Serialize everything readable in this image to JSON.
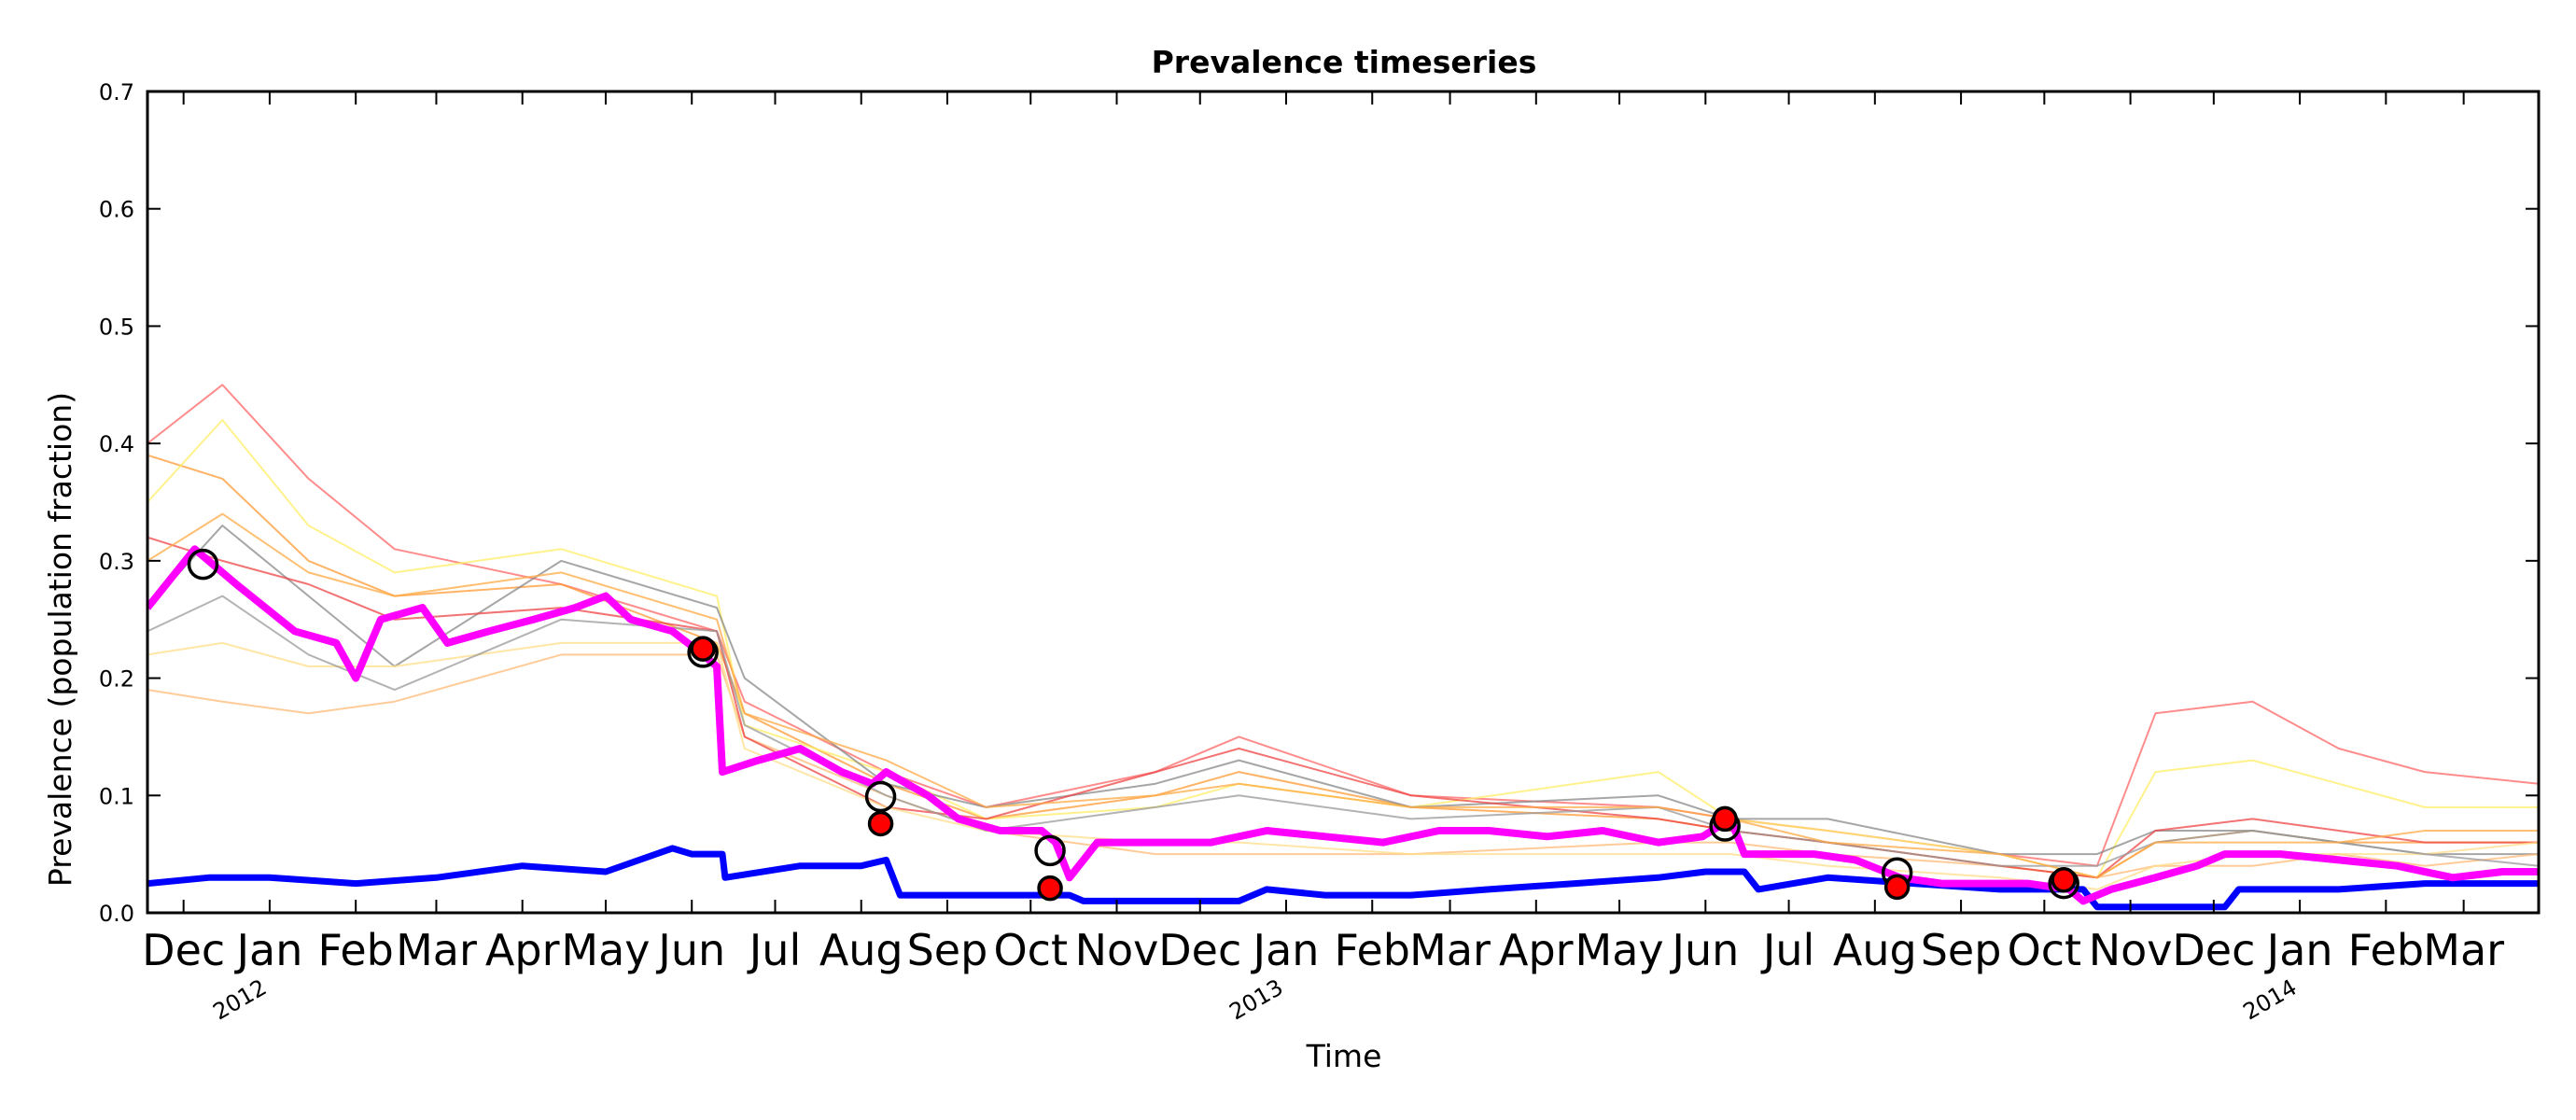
{
  "chart_data": {
    "type": "line",
    "title": "Prevalence timeseries",
    "xlabel": "Time",
    "ylabel": "Prevalence (population fraction)",
    "xlim": [
      "2011-11-18",
      "2014-03-28"
    ],
    "ylim": [
      0.0,
      0.7
    ],
    "yticks": [
      0.0,
      0.1,
      0.2,
      0.3,
      0.4,
      0.5,
      0.6,
      0.7
    ],
    "ytick_labels": [
      "0.0",
      "0.1",
      "0.2",
      "0.3",
      "0.4",
      "0.5",
      "0.6",
      "0.7"
    ],
    "month_ticks": [
      {
        "date": "2011-12-01",
        "label": "Dec"
      },
      {
        "date": "2012-01-01",
        "label": "Jan"
      },
      {
        "date": "2012-02-01",
        "label": "Feb"
      },
      {
        "date": "2012-03-01",
        "label": "Mar"
      },
      {
        "date": "2012-04-01",
        "label": "Apr"
      },
      {
        "date": "2012-05-01",
        "label": "May"
      },
      {
        "date": "2012-06-01",
        "label": "Jun"
      },
      {
        "date": "2012-07-01",
        "label": "Jul"
      },
      {
        "date": "2012-08-01",
        "label": "Aug"
      },
      {
        "date": "2012-09-01",
        "label": "Sep"
      },
      {
        "date": "2012-10-01",
        "label": "Oct"
      },
      {
        "date": "2012-11-01",
        "label": "Nov"
      },
      {
        "date": "2012-12-01",
        "label": "Dec"
      },
      {
        "date": "2013-01-01",
        "label": "Jan"
      },
      {
        "date": "2013-02-01",
        "label": "Feb"
      },
      {
        "date": "2013-03-01",
        "label": "Mar"
      },
      {
        "date": "2013-04-01",
        "label": "Apr"
      },
      {
        "date": "2013-05-01",
        "label": "May"
      },
      {
        "date": "2013-06-01",
        "label": "Jun"
      },
      {
        "date": "2013-07-01",
        "label": "Jul"
      },
      {
        "date": "2013-08-01",
        "label": "Aug"
      },
      {
        "date": "2013-09-01",
        "label": "Sep"
      },
      {
        "date": "2013-10-01",
        "label": "Oct"
      },
      {
        "date": "2013-11-01",
        "label": "Nov"
      },
      {
        "date": "2013-12-01",
        "label": "Dec"
      },
      {
        "date": "2014-01-01",
        "label": "Jan"
      },
      {
        "date": "2014-02-01",
        "label": "Feb"
      },
      {
        "date": "2014-03-01",
        "label": "Mar"
      }
    ],
    "year_ticks": [
      {
        "date": "2012-01-01",
        "label": "2012"
      },
      {
        "date": "2013-01-01",
        "label": "2013"
      },
      {
        "date": "2014-01-01",
        "label": "2014"
      }
    ],
    "grid": false,
    "legend": "none",
    "series": [
      {
        "role": "mean",
        "color": "#ff00ff",
        "x": [
          "2011-11-18",
          "2011-12-05",
          "2011-12-20",
          "2012-01-10",
          "2012-01-25",
          "2012-02-01",
          "2012-02-10",
          "2012-02-25",
          "2012-03-05",
          "2012-03-20",
          "2012-04-05",
          "2012-04-20",
          "2012-05-01",
          "2012-05-10",
          "2012-05-25",
          "2012-06-05",
          "2012-06-10",
          "2012-06-12",
          "2012-06-25",
          "2012-07-10",
          "2012-07-25",
          "2012-08-05",
          "2012-08-10",
          "2012-08-25",
          "2012-09-05",
          "2012-09-20",
          "2012-10-05",
          "2012-10-10",
          "2012-10-15",
          "2012-10-25",
          "2012-11-15",
          "2012-12-05",
          "2012-12-25",
          "2013-01-15",
          "2013-02-05",
          "2013-02-25",
          "2013-03-15",
          "2013-04-05",
          "2013-04-25",
          "2013-05-15",
          "2013-05-31",
          "2013-06-10",
          "2013-06-15",
          "2013-06-25",
          "2013-07-10",
          "2013-07-25",
          "2013-08-10",
          "2013-08-25",
          "2013-09-10",
          "2013-09-25",
          "2013-10-10",
          "2013-10-15",
          "2013-10-25",
          "2013-11-10",
          "2013-11-25",
          "2013-12-05",
          "2013-12-25",
          "2014-01-15",
          "2014-02-05",
          "2014-02-25",
          "2014-03-15",
          "2014-03-28"
        ],
        "y": [
          0.26,
          0.31,
          0.28,
          0.24,
          0.23,
          0.2,
          0.25,
          0.26,
          0.23,
          0.24,
          0.25,
          0.26,
          0.27,
          0.25,
          0.24,
          0.22,
          0.21,
          0.12,
          0.13,
          0.14,
          0.12,
          0.11,
          0.12,
          0.1,
          0.08,
          0.07,
          0.07,
          0.06,
          0.03,
          0.06,
          0.06,
          0.06,
          0.07,
          0.065,
          0.06,
          0.07,
          0.07,
          0.065,
          0.07,
          0.06,
          0.065,
          0.08,
          0.05,
          0.05,
          0.05,
          0.045,
          0.03,
          0.025,
          0.025,
          0.025,
          0.02,
          0.01,
          0.02,
          0.03,
          0.04,
          0.05,
          0.05,
          0.045,
          0.04,
          0.03,
          0.035,
          0.035
        ]
      },
      {
        "role": "observed",
        "color": "#0000ff",
        "x": [
          "2011-11-18",
          "2011-12-10",
          "2012-01-01",
          "2012-02-01",
          "2012-03-01",
          "2012-04-01",
          "2012-05-01",
          "2012-05-25",
          "2012-06-01",
          "2012-06-12",
          "2012-06-13",
          "2012-07-10",
          "2012-08-01",
          "2012-08-10",
          "2012-08-15",
          "2012-09-10",
          "2012-10-05",
          "2012-10-15",
          "2012-10-20",
          "2012-11-15",
          "2012-12-15",
          "2012-12-25",
          "2013-01-15",
          "2013-02-15",
          "2013-03-15",
          "2013-04-15",
          "2013-05-15",
          "2013-06-01",
          "2013-06-15",
          "2013-06-20",
          "2013-07-15",
          "2013-08-15",
          "2013-09-15",
          "2013-10-05",
          "2013-10-15",
          "2013-10-20",
          "2013-11-15",
          "2013-12-01",
          "2013-12-05",
          "2013-12-10",
          "2014-01-15",
          "2014-02-15",
          "2014-03-15",
          "2014-03-28"
        ],
        "y": [
          0.025,
          0.03,
          0.03,
          0.025,
          0.03,
          0.04,
          0.035,
          0.055,
          0.05,
          0.05,
          0.03,
          0.04,
          0.04,
          0.045,
          0.015,
          0.015,
          0.015,
          0.015,
          0.01,
          0.01,
          0.01,
          0.02,
          0.015,
          0.015,
          0.02,
          0.025,
          0.03,
          0.035,
          0.035,
          0.02,
          0.03,
          0.025,
          0.02,
          0.02,
          0.02,
          0.005,
          0.005,
          0.005,
          0.005,
          0.02,
          0.02,
          0.025,
          0.025,
          0.025
        ]
      },
      {
        "role": "simulation",
        "color": "#ff6666",
        "x": [
          "2011-11-18",
          "2011-12-15",
          "2012-01-15",
          "2012-02-15",
          "2012-04-15",
          "2012-06-10",
          "2012-06-20",
          "2012-08-10",
          "2012-09-15",
          "2012-11-15",
          "2012-12-15",
          "2013-02-15",
          "2013-05-15",
          "2013-06-10",
          "2013-07-15",
          "2013-09-15",
          "2013-10-20",
          "2013-11-10",
          "2013-12-15",
          "2014-01-15",
          "2014-02-15",
          "2014-03-28"
        ],
        "y": [
          0.4,
          0.45,
          0.37,
          0.31,
          0.28,
          0.24,
          0.18,
          0.12,
          0.09,
          0.12,
          0.15,
          0.1,
          0.09,
          0.08,
          0.07,
          0.05,
          0.04,
          0.17,
          0.18,
          0.14,
          0.12,
          0.11
        ]
      },
      {
        "role": "simulation",
        "color": "#ff9933",
        "x": [
          "2011-11-18",
          "2011-12-15",
          "2012-01-15",
          "2012-02-15",
          "2012-04-15",
          "2012-06-10",
          "2012-06-20",
          "2012-08-10",
          "2012-09-15",
          "2012-11-15",
          "2012-12-15",
          "2013-02-15",
          "2013-05-15",
          "2013-06-10",
          "2013-07-15",
          "2013-09-15",
          "2013-10-20",
          "2013-11-10",
          "2013-12-15",
          "2014-01-15",
          "2014-02-15",
          "2014-03-28"
        ],
        "y": [
          0.39,
          0.37,
          0.3,
          0.27,
          0.28,
          0.23,
          0.17,
          0.11,
          0.08,
          0.1,
          0.12,
          0.09,
          0.08,
          0.07,
          0.06,
          0.04,
          0.03,
          0.06,
          0.07,
          0.06,
          0.06,
          0.06
        ]
      },
      {
        "role": "simulation",
        "color": "#ffee66",
        "x": [
          "2011-11-18",
          "2011-12-15",
          "2012-01-15",
          "2012-02-15",
          "2012-04-15",
          "2012-06-10",
          "2012-06-20",
          "2012-08-10",
          "2012-09-15",
          "2012-11-15",
          "2012-12-15",
          "2013-02-15",
          "2013-05-15",
          "2013-06-10",
          "2013-07-15",
          "2013-09-15",
          "2013-10-20",
          "2013-11-10",
          "2013-12-15",
          "2014-01-15",
          "2014-02-15",
          "2014-03-28"
        ],
        "y": [
          0.35,
          0.42,
          0.33,
          0.29,
          0.31,
          0.27,
          0.16,
          0.12,
          0.08,
          0.09,
          0.11,
          0.09,
          0.12,
          0.08,
          0.07,
          0.05,
          0.03,
          0.12,
          0.13,
          0.11,
          0.09,
          0.09
        ]
      },
      {
        "role": "simulation",
        "color": "#888888",
        "x": [
          "2011-11-18",
          "2011-12-15",
          "2012-01-15",
          "2012-02-15",
          "2012-04-15",
          "2012-06-10",
          "2012-06-20",
          "2012-08-10",
          "2012-09-15",
          "2012-11-15",
          "2012-12-15",
          "2013-02-15",
          "2013-05-15",
          "2013-06-10",
          "2013-07-15",
          "2013-09-15",
          "2013-10-20",
          "2013-11-10",
          "2013-12-15",
          "2014-01-15",
          "2014-02-15",
          "2014-03-28"
        ],
        "y": [
          0.26,
          0.33,
          0.27,
          0.21,
          0.3,
          0.26,
          0.2,
          0.11,
          0.09,
          0.11,
          0.13,
          0.09,
          0.1,
          0.08,
          0.08,
          0.05,
          0.05,
          0.07,
          0.07,
          0.06,
          0.05,
          0.05
        ]
      },
      {
        "role": "simulation",
        "color": "#ffbb77",
        "x": [
          "2011-11-18",
          "2011-12-15",
          "2012-01-15",
          "2012-02-15",
          "2012-04-15",
          "2012-06-10",
          "2012-06-20",
          "2012-08-10",
          "2012-09-15",
          "2012-11-15",
          "2012-12-15",
          "2013-02-15",
          "2013-05-15",
          "2013-06-10",
          "2013-07-15",
          "2013-09-15",
          "2013-10-20",
          "2013-11-10",
          "2013-12-15",
          "2014-01-15",
          "2014-02-15",
          "2014-03-28"
        ],
        "y": [
          0.19,
          0.18,
          0.17,
          0.18,
          0.22,
          0.22,
          0.15,
          0.1,
          0.07,
          0.05,
          0.05,
          0.05,
          0.06,
          0.06,
          0.05,
          0.04,
          0.03,
          0.04,
          0.04,
          0.05,
          0.04,
          0.05
        ]
      },
      {
        "role": "simulation",
        "color": "#ee4444",
        "x": [
          "2011-11-18",
          "2011-12-15",
          "2012-01-15",
          "2012-02-15",
          "2012-04-15",
          "2012-06-10",
          "2012-06-20",
          "2012-08-10",
          "2012-09-15",
          "2012-11-15",
          "2012-12-15",
          "2013-02-15",
          "2013-05-15",
          "2013-06-10",
          "2013-07-15",
          "2013-09-15",
          "2013-10-20",
          "2013-11-10",
          "2013-12-15",
          "2014-01-15",
          "2014-02-15",
          "2014-03-28"
        ],
        "y": [
          0.32,
          0.3,
          0.28,
          0.25,
          0.26,
          0.24,
          0.15,
          0.09,
          0.08,
          0.12,
          0.14,
          0.1,
          0.08,
          0.07,
          0.06,
          0.04,
          0.03,
          0.07,
          0.08,
          0.07,
          0.06,
          0.06
        ]
      },
      {
        "role": "simulation",
        "color": "#ffdd88",
        "x": [
          "2011-11-18",
          "2011-12-15",
          "2012-01-15",
          "2012-02-15",
          "2012-04-15",
          "2012-06-10",
          "2012-06-20",
          "2012-08-10",
          "2012-09-15",
          "2012-11-15",
          "2012-12-15",
          "2013-02-15",
          "2013-05-15",
          "2013-06-10",
          "2013-07-15",
          "2013-09-15",
          "2013-10-20",
          "2013-11-10",
          "2013-12-15",
          "2014-01-15",
          "2014-02-15",
          "2014-03-28"
        ],
        "y": [
          0.22,
          0.23,
          0.21,
          0.21,
          0.23,
          0.23,
          0.14,
          0.09,
          0.07,
          0.06,
          0.06,
          0.05,
          0.05,
          0.05,
          0.04,
          0.03,
          0.02,
          0.04,
          0.05,
          0.05,
          0.05,
          0.06
        ]
      },
      {
        "role": "simulation",
        "color": "#999999",
        "x": [
          "2011-11-18",
          "2011-12-15",
          "2012-01-15",
          "2012-02-15",
          "2012-04-15",
          "2012-06-10",
          "2012-06-20",
          "2012-08-10",
          "2012-09-15",
          "2012-11-15",
          "2012-12-15",
          "2013-02-15",
          "2013-05-15",
          "2013-06-10",
          "2013-07-15",
          "2013-09-15",
          "2013-10-20",
          "2013-11-10",
          "2013-12-15",
          "2014-01-15",
          "2014-02-15",
          "2014-03-28"
        ],
        "y": [
          0.24,
          0.27,
          0.22,
          0.19,
          0.25,
          0.24,
          0.16,
          0.1,
          0.07,
          0.09,
          0.1,
          0.08,
          0.09,
          0.07,
          0.06,
          0.04,
          0.04,
          0.06,
          0.07,
          0.06,
          0.05,
          0.04
        ]
      },
      {
        "role": "simulation",
        "color": "#ffaa44",
        "x": [
          "2011-11-18",
          "2011-12-15",
          "2012-01-15",
          "2012-02-15",
          "2012-04-15",
          "2012-06-10",
          "2012-06-20",
          "2012-08-10",
          "2012-09-15",
          "2012-11-15",
          "2012-12-15",
          "2013-02-15",
          "2013-05-15",
          "2013-06-10",
          "2013-07-15",
          "2013-09-15",
          "2013-10-20",
          "2013-11-10",
          "2013-12-15",
          "2014-01-15",
          "2014-02-15",
          "2014-03-28"
        ],
        "y": [
          0.3,
          0.34,
          0.29,
          0.27,
          0.29,
          0.25,
          0.17,
          0.13,
          0.09,
          0.1,
          0.11,
          0.09,
          0.09,
          0.08,
          0.06,
          0.05,
          0.03,
          0.06,
          0.06,
          0.06,
          0.07,
          0.07
        ]
      }
    ],
    "markers": [
      {
        "type": "open",
        "x": "2011-12-08",
        "y": 0.297
      },
      {
        "type": "open",
        "x": "2012-06-05",
        "y": 0.222
      },
      {
        "type": "filled",
        "x": "2012-06-05",
        "y": 0.225
      },
      {
        "type": "open",
        "x": "2012-08-08",
        "y": 0.099
      },
      {
        "type": "filled",
        "x": "2012-08-08",
        "y": 0.076
      },
      {
        "type": "open",
        "x": "2012-10-08",
        "y": 0.053
      },
      {
        "type": "filled",
        "x": "2012-10-08",
        "y": 0.021
      },
      {
        "type": "open",
        "x": "2013-06-08",
        "y": 0.074
      },
      {
        "type": "filled",
        "x": "2013-06-08",
        "y": 0.08
      },
      {
        "type": "open",
        "x": "2013-08-09",
        "y": 0.034
      },
      {
        "type": "filled",
        "x": "2013-08-09",
        "y": 0.022
      },
      {
        "type": "open",
        "x": "2013-10-08",
        "y": 0.025
      },
      {
        "type": "filled",
        "x": "2013-10-08",
        "y": 0.028
      }
    ]
  }
}
